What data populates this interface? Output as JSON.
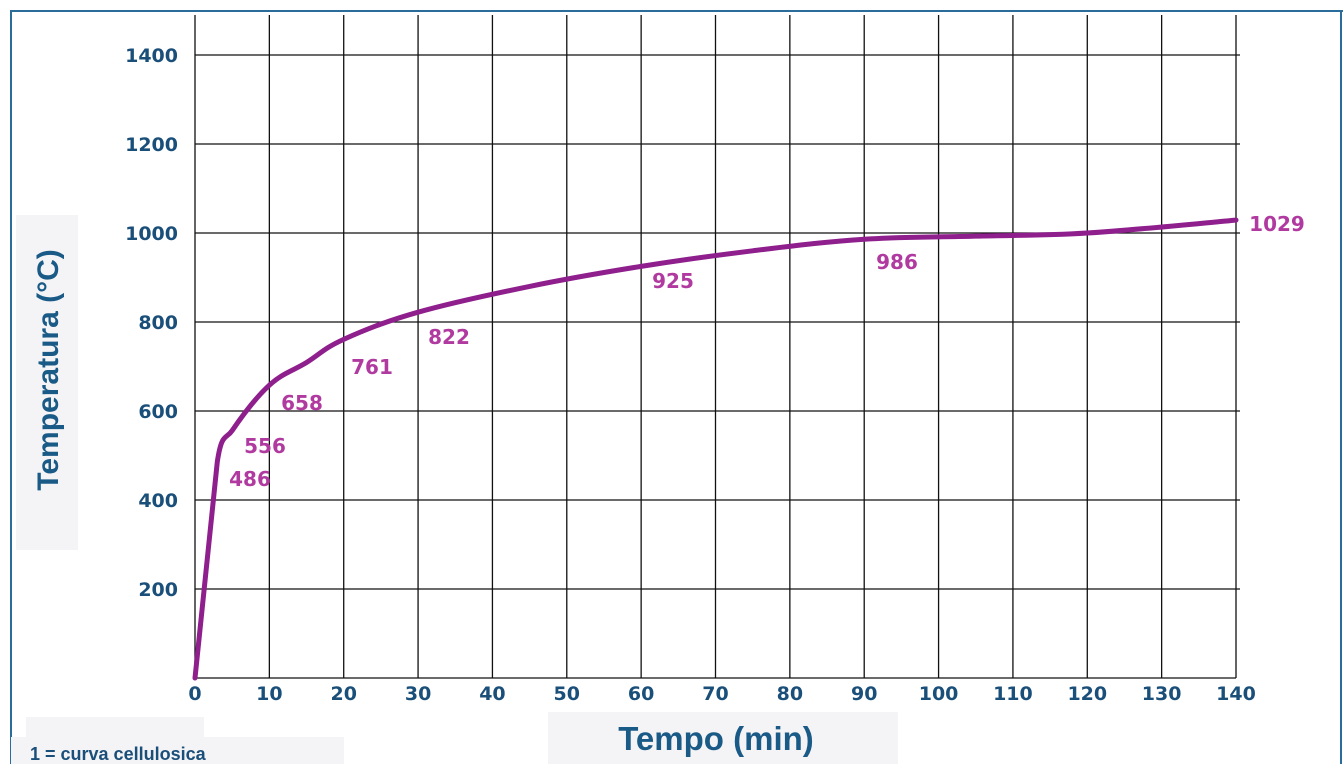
{
  "chart_data": {
    "type": "line",
    "xlabel": "Tempo (min)",
    "ylabel": "Temperatura (°C)",
    "legend_note": "1 = curva cellulosica",
    "xlim": [
      0,
      140
    ],
    "ylim": [
      0,
      1400
    ],
    "x_ticks": [
      "0",
      "10",
      "20",
      "30",
      "40",
      "50",
      "60",
      "70",
      "80",
      "90",
      "100",
      "110",
      "120",
      "130",
      "140"
    ],
    "y_ticks": [
      "200",
      "400",
      "600",
      "800",
      "1000",
      "1200",
      "1400"
    ],
    "grid": true,
    "series": [
      {
        "color": "#8e1f8c",
        "x": [
          0,
          3,
          5,
          10,
          15,
          20,
          30,
          45,
          60,
          75,
          90,
          105,
          120,
          140
        ],
        "y": [
          0,
          486,
          556,
          658,
          709,
          761,
          822,
          880,
          925,
          960,
          986,
          993,
          1000,
          1029
        ]
      }
    ],
    "data_labels": [
      {
        "x": 3,
        "y": 486,
        "text": "486"
      },
      {
        "x": 5,
        "y": 556,
        "text": "556"
      },
      {
        "x": 10,
        "y": 658,
        "text": "658"
      },
      {
        "x": 20,
        "y": 761,
        "text": "761"
      },
      {
        "x": 30,
        "y": 822,
        "text": "822"
      },
      {
        "x": 60,
        "y": 925,
        "text": "925"
      },
      {
        "x": 90,
        "y": 986,
        "text": "986"
      },
      {
        "x": 140,
        "y": 1029,
        "text": "1029"
      }
    ],
    "colors": {
      "curve": "#8e1f8c",
      "label": "#b03a9f",
      "tick": "#1a4f7a",
      "axis_title": "#1a5a86",
      "grid": "#111111",
      "frame": "#2a6d9a"
    }
  }
}
